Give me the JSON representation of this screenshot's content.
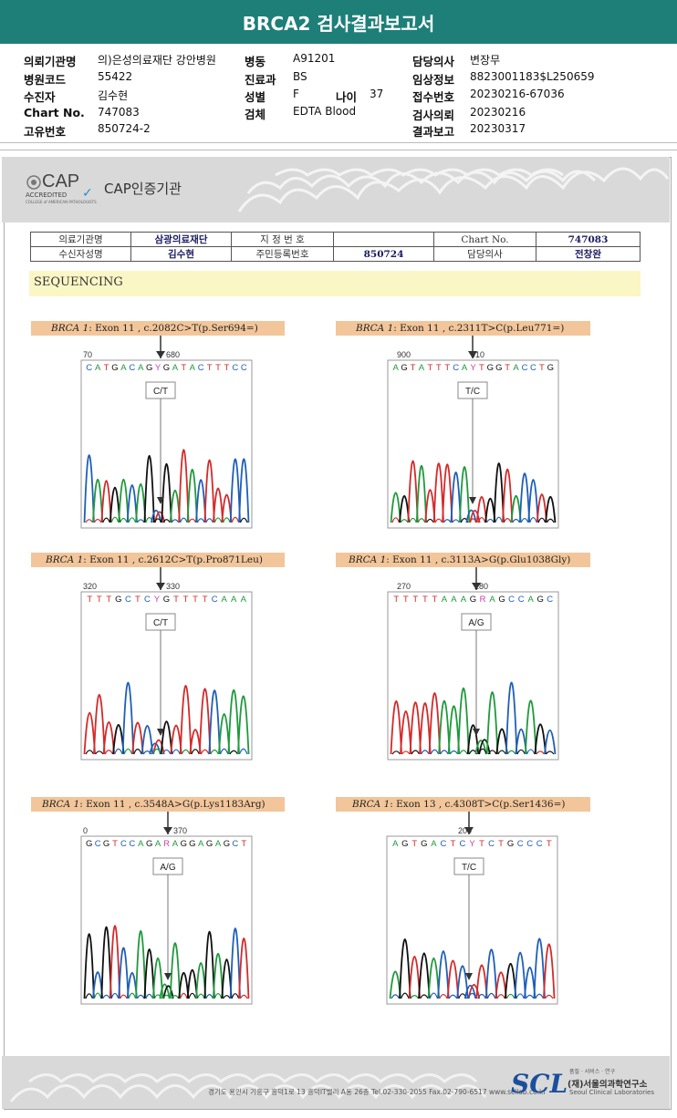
{
  "title": "BRCA2 검사결과보고서",
  "header": {
    "col1": [
      {
        "label": "의뢰기관명",
        "value": "의)은성의료재단 강안병원"
      },
      {
        "label": "병원코드",
        "value": "55422"
      },
      {
        "label": "수진자",
        "value": "김수현"
      },
      {
        "label": "Chart No.",
        "value": "747083"
      },
      {
        "label": "고유번호",
        "value": "850724-2"
      }
    ],
    "col2": [
      {
        "label": "병동",
        "value": "A91201"
      },
      {
        "label": "진료과",
        "value": "BS"
      },
      {
        "label": "성별",
        "value": "F"
      },
      {
        "label": "검체",
        "value": "EDTA Blood"
      }
    ],
    "age": {
      "label": "나이",
      "value": "37"
    },
    "col3": [
      {
        "label": "담당의사",
        "value": "변장무"
      },
      {
        "label": "임상정보",
        "value": "8823001183$L250659"
      },
      {
        "label": "접수번호",
        "value": "20230216-67036"
      },
      {
        "label": "검사의뢰",
        "value": "20230216"
      },
      {
        "label": "결과보고",
        "value": "20230317"
      }
    ]
  },
  "cap": {
    "word": "CAP",
    "accredited": "ACCREDITED",
    "college": "COLLEGE of AMERICAN PATHOLOGISTS",
    "label": "CAP인증기관"
  },
  "info_table": {
    "r1": [
      "의료기관명",
      "삼광의료재단",
      "지 정 번 호",
      "",
      "Chart No.",
      "747083"
    ],
    "r2": [
      "수신자성명",
      "김수현",
      "주민등록번호",
      "850724",
      "담당의사",
      "전창완"
    ]
  },
  "section": "SEQUENCING",
  "colors": {
    "A": "#1f9a3c",
    "C": "#1f5fb8",
    "G": "#111111",
    "T": "#d42a2a"
  },
  "panels": [
    {
      "gene": "BRCA 1",
      "desc": ": Exon 11 , c.2082C>T(p.Ser694=)",
      "seq": "CATGACAGYGATACTTTCC",
      "ticks": [
        "70",
        "680"
      ],
      "call": "C/T"
    },
    {
      "gene": "BRCA 1",
      "desc": ": Exon 11 , c.2311T>C(p.Leu771=)",
      "seq": "AGTATTTCAYTGGTACCTG",
      "ticks": [
        "900",
        "910"
      ],
      "call": "T/C"
    },
    {
      "gene": "BRCA 1",
      "desc": ": Exon 11 , c.2612C>T(p.Pro871Leu)",
      "seq": "TTTGCTCYGTTTTCAAA",
      "ticks": [
        "320",
        "330"
      ],
      "call": "C/T"
    },
    {
      "gene": "BRCA 1",
      "desc": ": Exon 11 , c.3113A>G(p.Glu1038Gly)",
      "seq": "TTTTTAAAGRAGCCAGC",
      "ticks": [
        "270",
        "280"
      ],
      "call": "A/G"
    },
    {
      "gene": "BRCA 1",
      "desc": ": Exon 11 , c.3548A>G(p.Lys1183Arg)",
      "seq": "GCGTCCAGARAGGAGAGCT",
      "ticks": [
        "0",
        "370"
      ],
      "call": "A/G"
    },
    {
      "gene": "BRCA 1",
      "desc": ": Exon 13 , c.4308T>C(p.Ser1436=)",
      "seq": "AGTGACTCYTCTGCCCT",
      "ticks": [
        "200"
      ],
      "call": "T/C"
    }
  ],
  "footer": {
    "address": "경기도 용인시 기흥구 흥덕1로 13 흥덕IT밸리 A동 26층  Tel.02-330-2055  Fax.02-790-6517",
    "web": "www.scllab.co.kr",
    "logo": "SCL",
    "tagline": "품질 · 서비스 · 연구",
    "name_ko": "(재)서울의과학연구소",
    "name_en": "Seoul Clinical Laboratories"
  }
}
